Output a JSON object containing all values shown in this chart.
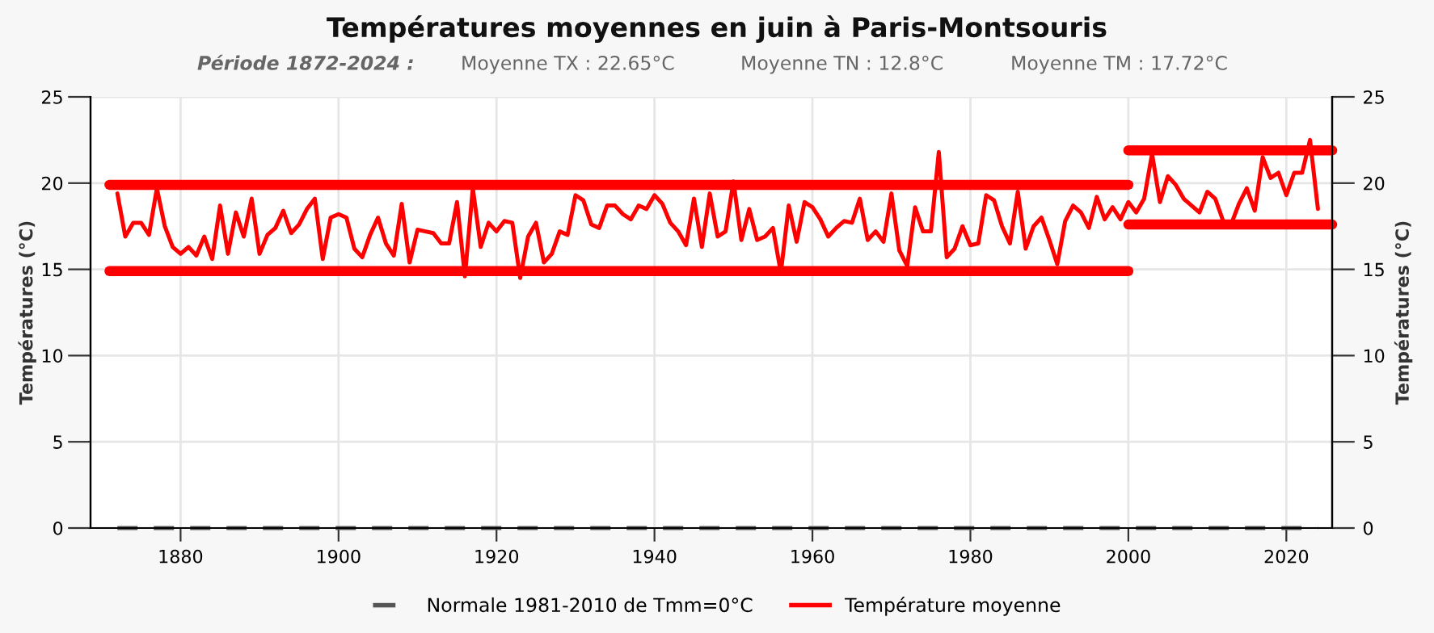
{
  "chart_data": {
    "type": "line",
    "title": "Températures moyennes en juin à Paris-Montsouris",
    "subtitle": "Période 1872-2024 :",
    "annotations": [
      "Moyenne TX : 22.65°C",
      "Moyenne TN : 12.8°C",
      "Moyenne TM : 17.72°C"
    ],
    "ylabel": "Températures (°C)",
    "y2label": "Températures (°C)",
    "xlim": [
      1868.6,
      2025.8
    ],
    "xticks": [
      1880,
      1900,
      1920,
      1940,
      1960,
      1980,
      2000,
      2020
    ],
    "ylim": [
      0,
      25
    ],
    "yticks": [
      0,
      5,
      10,
      15,
      20,
      25
    ],
    "y2lim": [
      0,
      25
    ],
    "y2ticks": [
      0,
      5,
      10,
      15,
      20,
      25
    ],
    "grid": true,
    "legend": "bottom",
    "marker": "none",
    "series": [
      {
        "name": "Normale 1981-2010 de Tmm=0°C",
        "color": "#555555",
        "line_style": "dashed",
        "x": [
          1872,
          2024
        ],
        "values": [
          0,
          0
        ]
      },
      {
        "name": "Température moyenne",
        "color": "#ff0000",
        "line_style": "solid",
        "x": [
          1872,
          1873,
          1874,
          1875,
          1876,
          1877,
          1878,
          1879,
          1880,
          1881,
          1882,
          1883,
          1884,
          1885,
          1886,
          1887,
          1888,
          1889,
          1890,
          1891,
          1892,
          1893,
          1894,
          1895,
          1896,
          1897,
          1898,
          1899,
          1900,
          1901,
          1902,
          1903,
          1904,
          1905,
          1906,
          1907,
          1908,
          1909,
          1910,
          1911,
          1912,
          1913,
          1914,
          1915,
          1916,
          1917,
          1918,
          1919,
          1920,
          1921,
          1922,
          1923,
          1924,
          1925,
          1926,
          1927,
          1928,
          1929,
          1930,
          1931,
          1932,
          1933,
          1934,
          1935,
          1936,
          1937,
          1938,
          1939,
          1940,
          1941,
          1942,
          1943,
          1944,
          1945,
          1946,
          1947,
          1948,
          1949,
          1950,
          1951,
          1952,
          1953,
          1954,
          1955,
          1956,
          1957,
          1958,
          1959,
          1960,
          1961,
          1962,
          1963,
          1964,
          1965,
          1966,
          1967,
          1968,
          1969,
          1970,
          1971,
          1972,
          1973,
          1974,
          1975,
          1976,
          1977,
          1978,
          1979,
          1980,
          1981,
          1982,
          1983,
          1984,
          1985,
          1986,
          1987,
          1988,
          1989,
          1990,
          1991,
          1992,
          1993,
          1994,
          1995,
          1996,
          1997,
          1998,
          1999,
          2000,
          2001,
          2002,
          2003,
          2004,
          2005,
          2006,
          2007,
          2008,
          2009,
          2010,
          2011,
          2012,
          2013,
          2014,
          2015,
          2016,
          2017,
          2018,
          2019,
          2020,
          2021,
          2022,
          2023,
          2024
        ],
        "values": [
          19.4,
          16.9,
          17.7,
          17.7,
          17.0,
          19.7,
          17.5,
          16.3,
          15.9,
          16.3,
          15.8,
          16.9,
          15.6,
          18.7,
          15.9,
          18.3,
          16.9,
          19.1,
          15.9,
          17.0,
          17.4,
          18.4,
          17.1,
          17.6,
          18.5,
          19.1,
          15.6,
          18.0,
          18.2,
          18.0,
          16.2,
          15.7,
          17.0,
          18.0,
          16.5,
          15.8,
          18.8,
          15.4,
          17.3,
          17.2,
          17.1,
          16.5,
          16.5,
          18.9,
          14.6,
          19.7,
          16.3,
          17.7,
          17.2,
          17.8,
          17.7,
          14.5,
          16.9,
          17.7,
          15.4,
          15.9,
          17.2,
          17.0,
          19.3,
          19.0,
          17.6,
          17.4,
          18.7,
          18.7,
          18.2,
          17.9,
          18.7,
          18.5,
          19.3,
          18.8,
          17.7,
          17.2,
          16.4,
          19.1,
          16.3,
          19.4,
          16.9,
          17.2,
          20.1,
          16.7,
          18.5,
          16.7,
          16.9,
          17.4,
          14.8,
          18.7,
          16.6,
          18.9,
          18.6,
          17.9,
          16.9,
          17.4,
          17.8,
          17.7,
          19.1,
          16.7,
          17.2,
          16.6,
          19.4,
          16.1,
          15.2,
          18.6,
          17.2,
          17.2,
          21.8,
          15.7,
          16.2,
          17.5,
          16.4,
          16.5,
          19.3,
          19.0,
          17.5,
          16.5,
          19.5,
          16.2,
          17.5,
          18.0,
          16.7,
          15.3,
          17.8,
          18.7,
          18.3,
          17.4,
          19.2,
          17.9,
          18.6,
          17.9,
          18.9,
          18.3,
          19.1,
          21.7,
          18.9,
          20.4,
          19.9,
          19.1,
          18.7,
          18.3,
          19.5,
          19.1,
          17.8,
          17.6,
          18.8,
          19.7,
          18.4,
          21.5,
          20.3,
          20.6,
          19.3,
          20.6,
          20.6,
          22.5,
          18.5
        ]
      },
      {
        "color": "#ff0000",
        "line_style": "solid",
        "x": [
          1871,
          2000
        ],
        "values": [
          19.9,
          19.9
        ]
      },
      {
        "color": "#ff0000",
        "line_style": "solid",
        "x": [
          1871,
          2000
        ],
        "values": [
          14.9,
          14.9
        ]
      },
      {
        "color": "#ff0000",
        "line_style": "solid",
        "x": [
          2000,
          2025.8
        ],
        "values": [
          21.9,
          21.9
        ]
      },
      {
        "color": "#ff0000",
        "line_style": "solid",
        "x": [
          2000,
          2025.8
        ],
        "values": [
          17.6,
          17.6
        ]
      }
    ]
  }
}
